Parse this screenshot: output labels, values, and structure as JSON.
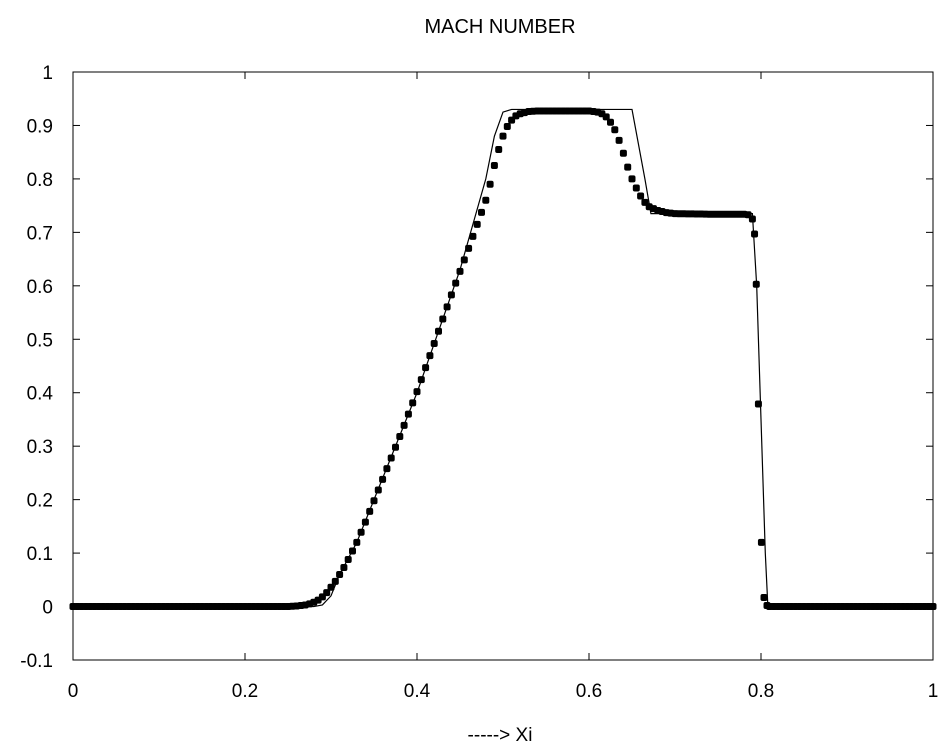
{
  "chart_data": {
    "type": "line",
    "title": "MACH NUMBER",
    "xlabel": "-----> Xi",
    "ylabel": "",
    "xlim": [
      0,
      1
    ],
    "ylim": [
      -0.1,
      1
    ],
    "xticks": [
      "0",
      "0.2",
      "0.4",
      "0.6",
      "0.8",
      "1"
    ],
    "yticks": [
      "-0.1",
      "0",
      "0.1",
      "0.2",
      "0.3",
      "0.4",
      "0.5",
      "0.6",
      "0.7",
      "0.8",
      "0.9",
      "1"
    ],
    "grid": false,
    "legend": "none",
    "series": [
      {
        "style": "solid-line",
        "color": "#000000",
        "points": [
          [
            0.0,
            0.0
          ],
          [
            0.28,
            0.0
          ],
          [
            0.29,
            0.003
          ],
          [
            0.3,
            0.02
          ],
          [
            0.31,
            0.06
          ],
          [
            0.33,
            0.12
          ],
          [
            0.35,
            0.2
          ],
          [
            0.4,
            0.4
          ],
          [
            0.45,
            0.63
          ],
          [
            0.48,
            0.8
          ],
          [
            0.49,
            0.88
          ],
          [
            0.5,
            0.925
          ],
          [
            0.51,
            0.93
          ],
          [
            0.65,
            0.93
          ],
          [
            0.665,
            0.8
          ],
          [
            0.672,
            0.735
          ],
          [
            0.74,
            0.735
          ],
          [
            0.79,
            0.735
          ],
          [
            0.795,
            0.6
          ],
          [
            0.8,
            0.35
          ],
          [
            0.805,
            0.1
          ],
          [
            0.808,
            0.0
          ],
          [
            1.0,
            0.0
          ]
        ]
      },
      {
        "style": "filled-circle-markers",
        "color": "#000000",
        "points": [
          [
            0.0,
            0.0
          ],
          [
            0.25,
            0.0
          ],
          [
            0.26,
            0.001
          ],
          [
            0.265,
            0.002
          ],
          [
            0.27,
            0.003
          ],
          [
            0.275,
            0.005
          ],
          [
            0.28,
            0.008
          ],
          [
            0.285,
            0.012
          ],
          [
            0.29,
            0.018
          ],
          [
            0.295,
            0.026
          ],
          [
            0.3,
            0.036
          ],
          [
            0.305,
            0.047
          ],
          [
            0.31,
            0.06
          ],
          [
            0.315,
            0.073
          ],
          [
            0.32,
            0.088
          ],
          [
            0.33,
            0.12
          ],
          [
            0.34,
            0.158
          ],
          [
            0.35,
            0.198
          ],
          [
            0.36,
            0.238
          ],
          [
            0.37,
            0.278
          ],
          [
            0.38,
            0.318
          ],
          [
            0.39,
            0.36
          ],
          [
            0.4,
            0.402
          ],
          [
            0.41,
            0.447
          ],
          [
            0.42,
            0.492
          ],
          [
            0.43,
            0.538
          ],
          [
            0.44,
            0.583
          ],
          [
            0.45,
            0.627
          ],
          [
            0.46,
            0.67
          ],
          [
            0.47,
            0.715
          ],
          [
            0.48,
            0.76
          ],
          [
            0.485,
            0.79
          ],
          [
            0.49,
            0.825
          ],
          [
            0.495,
            0.855
          ],
          [
            0.5,
            0.88
          ],
          [
            0.505,
            0.898
          ],
          [
            0.51,
            0.91
          ],
          [
            0.515,
            0.918
          ],
          [
            0.52,
            0.922
          ],
          [
            0.53,
            0.926
          ],
          [
            0.54,
            0.927
          ],
          [
            0.6,
            0.927
          ],
          [
            0.61,
            0.925
          ],
          [
            0.615,
            0.922
          ],
          [
            0.62,
            0.916
          ],
          [
            0.625,
            0.906
          ],
          [
            0.63,
            0.892
          ],
          [
            0.635,
            0.872
          ],
          [
            0.64,
            0.848
          ],
          [
            0.645,
            0.822
          ],
          [
            0.65,
            0.8
          ],
          [
            0.655,
            0.783
          ],
          [
            0.66,
            0.768
          ],
          [
            0.665,
            0.756
          ],
          [
            0.67,
            0.748
          ],
          [
            0.68,
            0.741
          ],
          [
            0.69,
            0.737
          ],
          [
            0.7,
            0.735
          ],
          [
            0.74,
            0.734
          ],
          [
            0.78,
            0.734
          ],
          [
            0.785,
            0.733
          ],
          [
            0.79,
            0.725
          ],
          [
            0.7925,
            0.697
          ],
          [
            0.7945,
            0.603
          ],
          [
            0.797,
            0.379
          ],
          [
            0.8005,
            0.12
          ],
          [
            0.8035,
            0.017
          ],
          [
            0.807,
            0.002
          ],
          [
            0.81,
            0.0
          ],
          [
            1.0,
            0.0
          ]
        ]
      }
    ]
  }
}
